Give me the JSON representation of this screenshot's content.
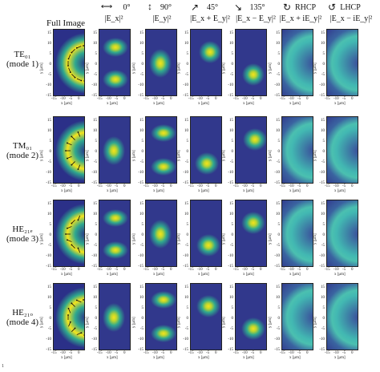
{
  "headers": {
    "col0": "Full Image",
    "col1_angle": "0°",
    "col1_label": "|E_x|²",
    "col2_angle": "90°",
    "col2_label": "|E_y|²",
    "col3_angle": "45°",
    "col3_label": "|E_x + E_y|²",
    "col4_angle": "135°",
    "col4_label": "|E_x − E_y|²",
    "col5_label": "RHCP",
    "col5_sub": "|E_x + iE_y|²",
    "col6_label": "LHCP",
    "col6_sub": "|E_x − iE_y|²"
  },
  "rows": [
    {
      "mode": "TE₀₁",
      "desc": "(mode 1)"
    },
    {
      "mode": "TM₀₁",
      "desc": "(mode 2)"
    },
    {
      "mode": "HE₂₁ₑ",
      "desc": "(mode 3)"
    },
    {
      "mode": "HE₂₁ₒ",
      "desc": "(mode 4)"
    }
  ],
  "axis": {
    "y_ticks": [
      "15",
      "10",
      "5",
      "0",
      "-5",
      "-10",
      "-15"
    ],
    "x_ticks": [
      "-15",
      "-10",
      "-5",
      "0"
    ],
    "x_label": "x [μm]",
    "y_label": "y [μm]"
  },
  "colors": {
    "bg_dark": "#31388c",
    "mid": "#2fa88e",
    "hot": "#f6e31c",
    "ring": "#42b8b2"
  },
  "footer": "1"
}
